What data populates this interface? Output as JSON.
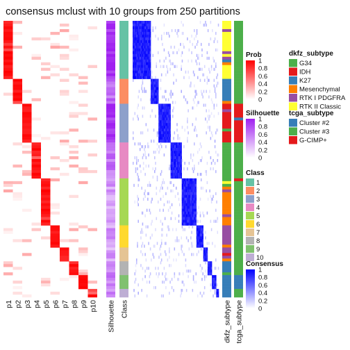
{
  "title": "consensus mclust with 10 groups from 250 partitions",
  "chart_data": {
    "type": "heatmap",
    "title": "consensus mclust with 10 groups from 250 partitions",
    "n_samples": 100,
    "prob_columns": [
      "p1",
      "p2",
      "p3",
      "p4",
      "p5",
      "p6",
      "p7",
      "p8",
      "p9",
      "p10"
    ],
    "annotation_columns": [
      "Silhouette",
      "Class",
      "dkfz_subtype",
      "tcga_subtype"
    ],
    "class_order": [
      1,
      2,
      3,
      4,
      5,
      6,
      7,
      8,
      9,
      10
    ],
    "class_sizes": [
      21,
      9,
      14,
      13,
      17,
      8,
      5,
      5,
      5,
      3
    ],
    "class_colors": [
      "#66C2A5",
      "#FC8D62",
      "#8DA0CB",
      "#E78AC3",
      "#A6D854",
      "#FFD92F",
      "#E5C494",
      "#B3B3B3",
      "#80C16F",
      "#BEAED4"
    ],
    "class_silhouette": [
      0.95,
      0.65,
      0.9,
      0.6,
      0.45,
      0.45,
      0.4,
      0.55,
      0.6,
      0.5
    ],
    "dkfz_by_class": [
      "RTK II Classic",
      "K27",
      "IDH",
      "G34",
      "Mesenchymal",
      "RTK I PDGFRA",
      "RTK I PDGFRA",
      "K27",
      "K27",
      "K27"
    ],
    "tcga_by_class": [
      "Cluster #3",
      "Cluster #3",
      "G-CIMP+",
      "Cluster #3",
      "Cluster #3",
      "Cluster #3",
      "Cluster #3",
      "Cluster #3",
      "Cluster #2",
      "Cluster #3"
    ],
    "legends": {
      "prob": {
        "title": "Prob",
        "ticks": [
          "1",
          "0.8",
          "0.6",
          "0.4",
          "0.2",
          "0"
        ],
        "colors": [
          "#FF0000",
          "#FFFFFF"
        ]
      },
      "silhouette": {
        "title": "Silhouette",
        "ticks": [
          "1",
          "0.8",
          "0.6",
          "0.4",
          "0.2",
          "0"
        ],
        "colors": [
          "#A020F0",
          "#FFFFFF"
        ]
      },
      "class": {
        "title": "Class",
        "labels": [
          "1",
          "2",
          "3",
          "4",
          "5",
          "6",
          "7",
          "8",
          "9",
          "10"
        ]
      },
      "consensus": {
        "title": "Consensus",
        "ticks": [
          "1",
          "0.8",
          "0.6",
          "0.4",
          "0.2",
          "0"
        ],
        "colors": [
          "#0000FF",
          "#FFFFFF"
        ]
      },
      "dkfz_subtype": {
        "title": "dkfz_subtype",
        "labels": [
          "G34",
          "IDH",
          "K27",
          "Mesenchymal",
          "RTK I PDGFRA",
          "RTK II Classic"
        ],
        "colors": [
          "#4DAF4A",
          "#E41A1C",
          "#377EB8",
          "#FF7F00",
          "#984EA3",
          "#FFFF33"
        ]
      },
      "tcga_subtype": {
        "title": "tcga_subtype",
        "labels": [
          "Cluster #2",
          "Cluster #3",
          "G-CIMP+"
        ],
        "colors": [
          "#377EB8",
          "#4DAF4A",
          "#E41A1C"
        ]
      }
    },
    "bottom_labels": [
      "p1",
      "p2",
      "p3",
      "p4",
      "p5",
      "p6",
      "p7",
      "p8",
      "p9",
      "p10",
      "Silhouette",
      "Class",
      "dkfz_subtype",
      "tcga_subtype"
    ]
  }
}
